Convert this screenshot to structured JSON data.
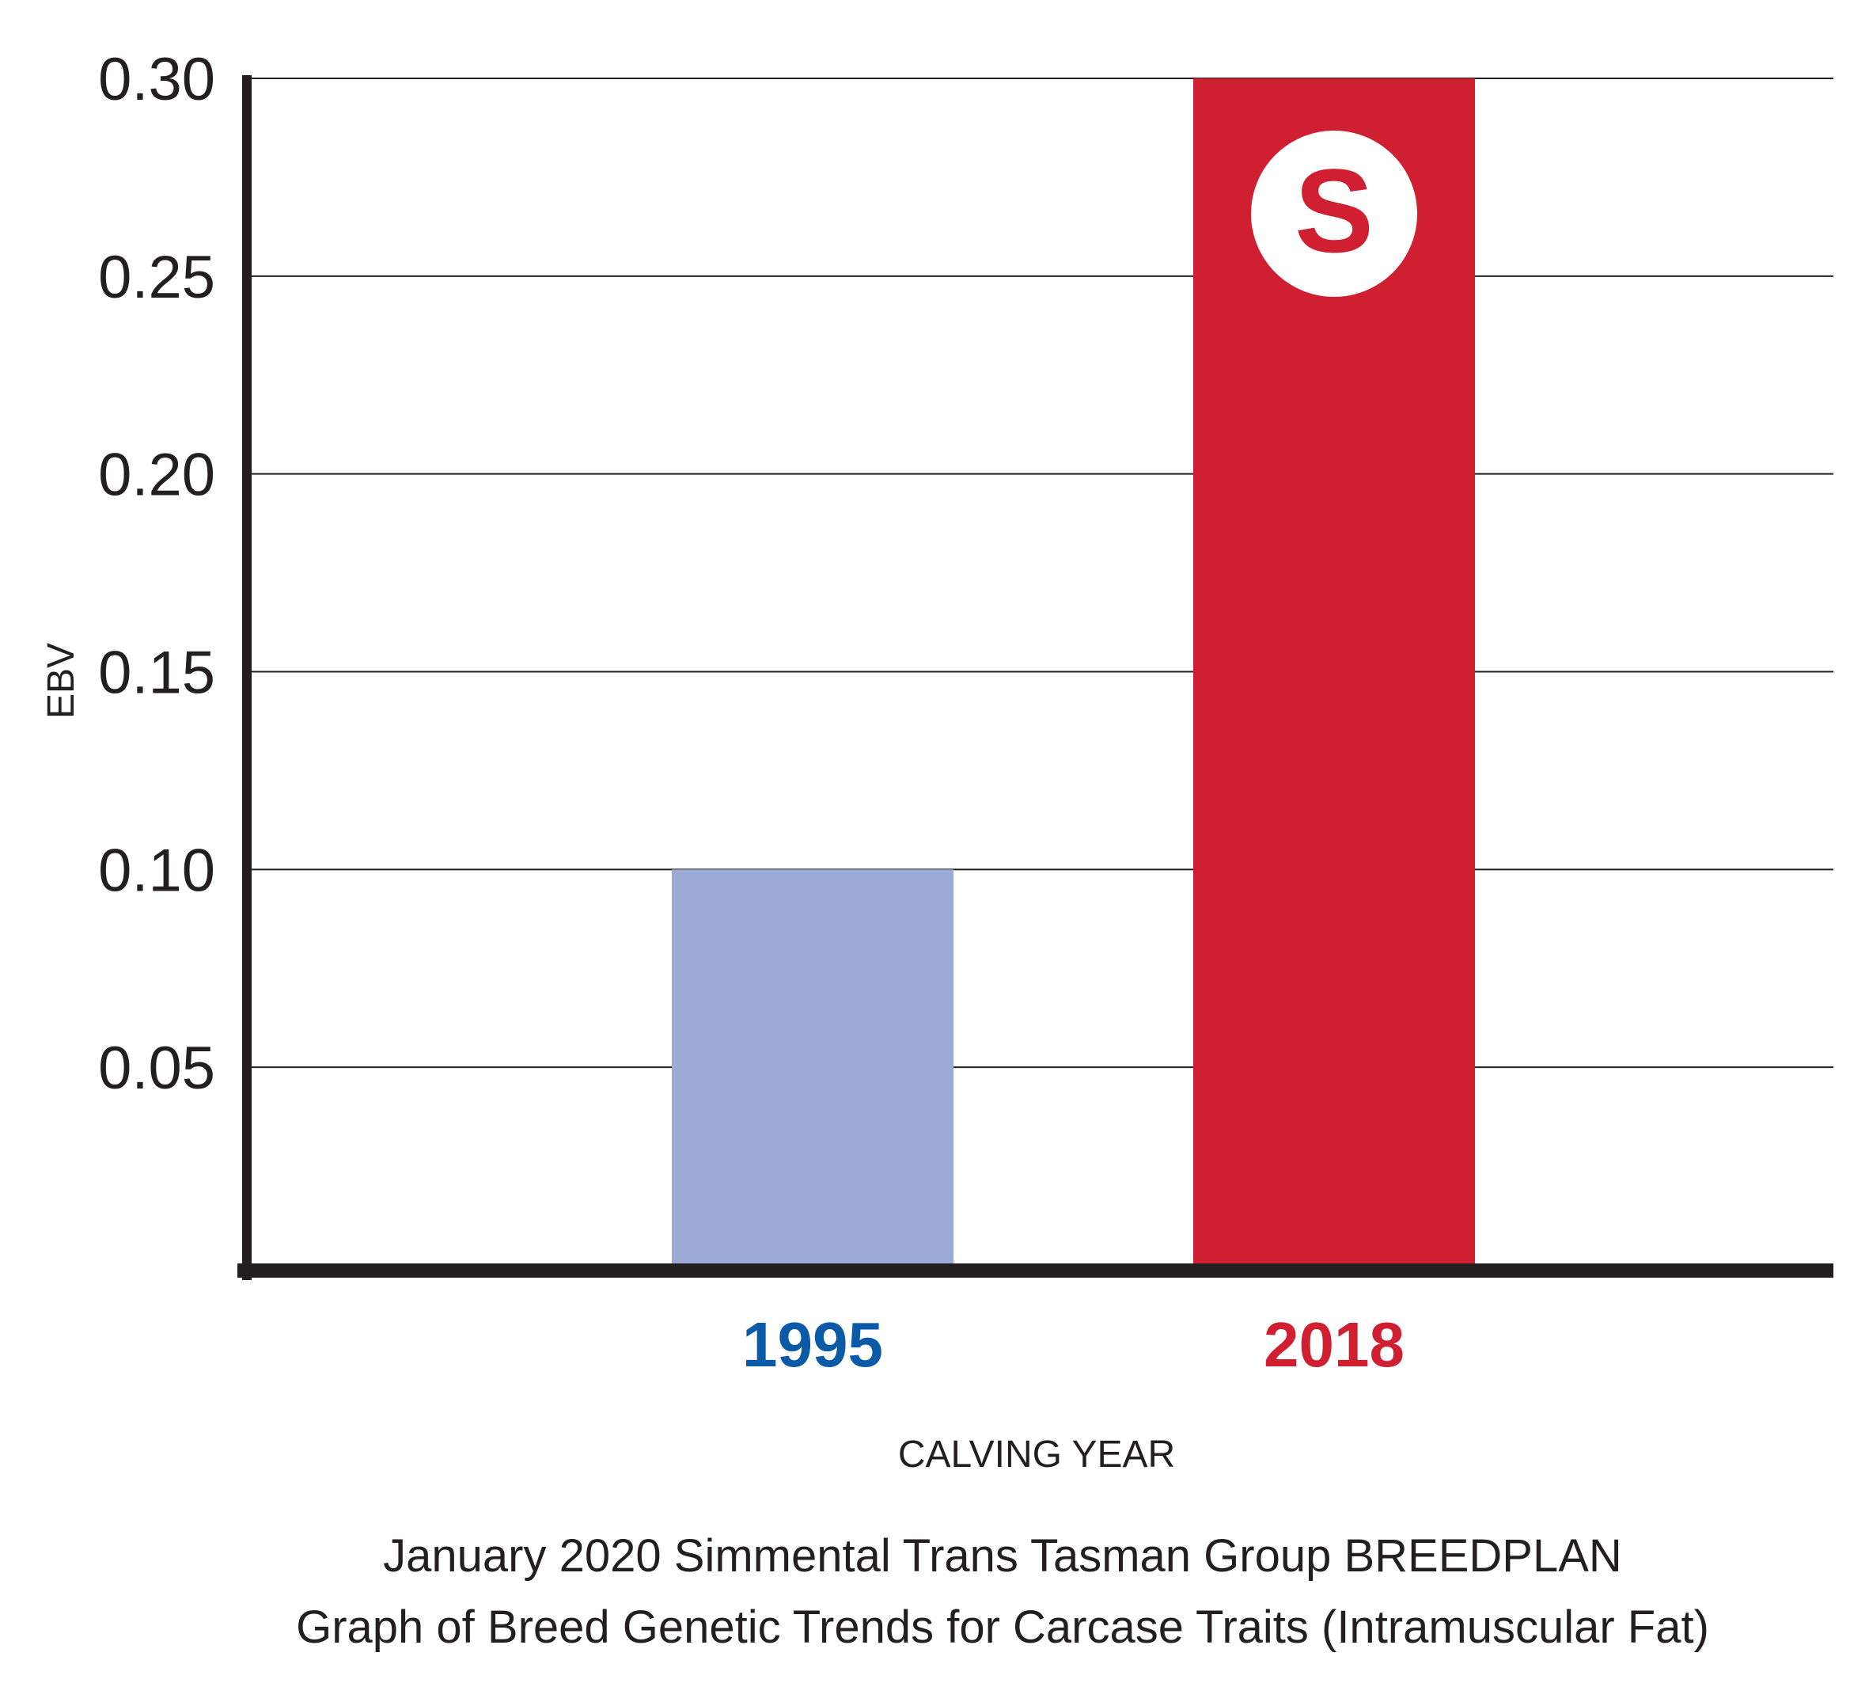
{
  "chart_data": {
    "type": "bar",
    "categories": [
      "1995",
      "2018"
    ],
    "values": [
      0.1,
      0.3
    ],
    "ylim": [
      0,
      0.3
    ],
    "yticks": [
      0.05,
      0.1,
      0.15,
      0.2,
      0.25,
      0.3
    ],
    "ytick_labels": [
      "0.05",
      "0.10",
      "0.15",
      "0.20",
      "0.25",
      "0.30"
    ],
    "ylabel": "EBV",
    "xlabel": "CALVING YEAR",
    "grid": true,
    "bar_colors": [
      "#9babd5",
      "#d11f32"
    ],
    "category_label_colors": [
      "#0a5aa8",
      "#d11f32"
    ],
    "logo_letter": "S",
    "caption_lines": [
      "January 2020 Simmental Trans Tasman Group BREEDPLAN",
      "Graph of Breed Genetic Trends for Carcase Traits (Intramuscular Fat)"
    ]
  }
}
